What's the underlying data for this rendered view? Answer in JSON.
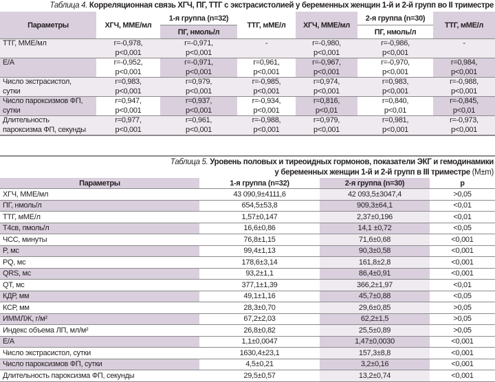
{
  "table4": {
    "caption_label": "Таблица 4.",
    "caption_text": " Корреляционная связь ХГЧ, ПГ, ТТГ с экстрасистолией у беременных женщин 1-й и 2-й групп во II триместре",
    "header": {
      "params": "Параметры",
      "group1": "1-я группа (n=32)",
      "group2": "2-я группа (n=30)",
      "hcg": "ХГЧ, ММЕ/мл",
      "pg": "ПГ, нмоль/л",
      "ttg": "ТТГ, мМЕ/л"
    },
    "rows": [
      {
        "param": [
          "ТТГ, ММЕ/мл",
          ""
        ],
        "cells": [
          [
            "r=-0,978,",
            "p<0,001"
          ],
          [
            "r=-0,971,",
            "p<0,001"
          ],
          [
            "-",
            ""
          ],
          [
            "r=-0,980,",
            "p<0,001"
          ],
          [
            "r=-0,986,",
            "p<0,001"
          ],
          [
            "-",
            ""
          ]
        ]
      },
      {
        "param": [
          "Е/А",
          ""
        ],
        "cells": [
          [
            "r=-0,952,",
            "p<0,001"
          ],
          [
            "r=-0,971,",
            "p<0,001"
          ],
          [
            "r=0,961,",
            "p<0,001"
          ],
          [
            "r=-0,967,",
            "p<0,001"
          ],
          [
            "r=-0,970,",
            "p<0,001"
          ],
          [
            "r=0,984,",
            "p<0,001"
          ]
        ]
      },
      {
        "param": [
          "Число экстрасистол,",
          "сутки"
        ],
        "cells": [
          [
            "r=0,983,",
            "p<0,001"
          ],
          [
            "r=0,979,",
            "p<0,001"
          ],
          [
            "r=-0,985,",
            "p<0,001"
          ],
          [
            "r=0,974,",
            "p<0,001"
          ],
          [
            "r=0,983,",
            "p<0,001"
          ],
          [
            "r=-0,988,",
            "p<0,001"
          ]
        ]
      },
      {
        "param": [
          "Число пароксизмов ФП,",
          "сутки"
        ],
        "cells": [
          [
            "r=0,947,",
            "p<0,001"
          ],
          [
            "r=0,937,",
            "p<0,001"
          ],
          [
            "r=-0,934,",
            "p<0,001"
          ],
          [
            "r=0,816,",
            "p<0,01"
          ],
          [
            "r=0,840,",
            "p<0,01"
          ],
          [
            "r=-0,845,",
            "p<0,01"
          ]
        ]
      },
      {
        "param": [
          "Длительность",
          "пароксизма ФП, секунды"
        ],
        "cells": [
          [
            "r=0,977,",
            "p<0,001"
          ],
          [
            "r=0,961,",
            "p<0,001"
          ],
          [
            "r=-0,988,",
            "p<0,001"
          ],
          [
            "r=0,979,",
            "p<0,001"
          ],
          [
            "r=0,981,",
            "p<0,001"
          ],
          [
            "r=-0,973,",
            "p<0,001"
          ]
        ]
      }
    ]
  },
  "table5": {
    "caption_label": "Таблица 5.",
    "caption_line1": " Уровень половых и тиреоидных гормонов, показатели ЭКГ и гемодинамики",
    "caption_line2": "у беременных женщин 1-й и 2-й групп в III триместре ",
    "caption_unit": "(M±m)",
    "header": [
      "Параметры",
      "1-я группа (n=32)",
      "2-я группа (n=30)",
      "p"
    ],
    "rows": [
      [
        "ХГЧ, ММЕ/мл",
        "43 090,9±4111,6",
        "42 093,5±3047,4",
        ">0,05"
      ],
      [
        "ПГ, нмоль/л",
        "654,5±53,8",
        "909,3±64,1",
        "<0,01"
      ],
      [
        "ТТГ, мМЕ/л",
        "1,57±0,147",
        "2,37±0,196",
        "<0,01"
      ],
      [
        "Т4св, пмоль/л",
        "16,6±0,86",
        "14,1 ±0,72",
        "<0,05"
      ],
      [
        "ЧСС, минуты",
        "76,8±1,15",
        "71,6±0,68",
        "<0,001"
      ],
      [
        "P, мс",
        "99,4±1,13",
        "90,3±0,58",
        "<0,001"
      ],
      [
        "PQ, мс",
        "178,6±3,14",
        "161,8±2,8",
        "<0,001"
      ],
      [
        "QRS, мс",
        "93,2±1,1",
        "86,4±0,91",
        "<0,001"
      ],
      [
        "QT, мс",
        "377,1±1,39",
        "366,2±1,97",
        "<0,01"
      ],
      [
        "КДР, мм",
        "49,1±1,16",
        "45,7±0,88",
        "<0,05"
      ],
      [
        "КСР, мм",
        "28,3±0,70",
        "29,6±0,85",
        ">0,05"
      ],
      [
        "ИММЛЖ, г/м²",
        "67,2±2,03",
        "62,2±1,5",
        ">0,05"
      ],
      [
        "Индекс объема ЛП, мл/м²",
        "26,8±0,82",
        "25,5±0,89",
        ">0,05"
      ],
      [
        "Е/А",
        "1,1±0,0047",
        "1,47±0,0030",
        "<0,001"
      ],
      [
        "Число экстрасистол, сутки",
        "1630,4±23,1",
        "157,3±8,8",
        "<0,001"
      ],
      [
        "Число пароксизмов ФП, сутки",
        "4,5±0,21",
        "3,2±0,16",
        "<0,001"
      ],
      [
        "Длительность пароксизма ФП, секунды",
        "29,5±0,57",
        "13,2±0,74",
        "<0,001"
      ]
    ]
  }
}
